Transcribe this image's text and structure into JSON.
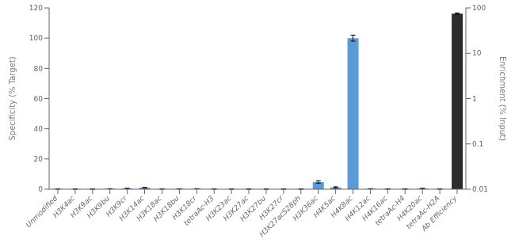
{
  "chart_data": {
    "type": "bar",
    "categories": [
      "Unmodified",
      "H3K4ac",
      "H3K9ac",
      "H3K9bu",
      "H3K9cr",
      "H3K14ac",
      "H3K18ac",
      "H3K18bu",
      "H3K18cr",
      "tetraAc-H3",
      "H3K23ac",
      "H3K27ac",
      "H3K27bu",
      "H3K27cr",
      "H3K27acS28ph",
      "H3K36ac",
      "H4K5ac",
      "H4K8ac",
      "H4K12ac",
      "H4K16ac",
      "tetraAc-H4",
      "H4K20ac",
      "tetraAc-H2A",
      "Ab Efficiency"
    ],
    "series": [
      {
        "color": "#5b9bd5",
        "values": [
          0.15,
          0.1,
          0.1,
          0.3,
          0.5,
          1.0,
          0.15,
          0.2,
          0.3,
          0.15,
          0.1,
          0.1,
          0.1,
          0.1,
          0.1,
          4.8,
          1.2,
          100.0,
          0.3,
          0.15,
          0.15,
          0.5,
          0.15,
          null
        ],
        "errors": [
          0.02,
          0.01,
          0.01,
          0.04,
          0.06,
          0.12,
          0.02,
          0.02,
          0.04,
          0.02,
          0.01,
          0.01,
          0.01,
          0.01,
          0.01,
          0.8,
          0.4,
          2.0,
          0.04,
          0.02,
          0.02,
          0.06,
          0.02,
          null
        ]
      },
      {
        "color": "#2d2d2d",
        "axis": "y2",
        "values": [
          null,
          null,
          null,
          null,
          null,
          null,
          null,
          null,
          null,
          null,
          null,
          null,
          null,
          null,
          null,
          null,
          null,
          null,
          null,
          null,
          null,
          null,
          null,
          75.0
        ],
        "errors": [
          null,
          null,
          null,
          null,
          null,
          null,
          null,
          null,
          null,
          null,
          null,
          null,
          null,
          null,
          null,
          null,
          null,
          null,
          null,
          null,
          null,
          null,
          null,
          2.5
        ]
      }
    ],
    "ylabel": "Specificity (% Target)",
    "y2label": "Enrichment (% Input)",
    "ylim": [
      0,
      120
    ],
    "yticks": [
      0,
      20,
      40,
      60,
      80,
      100,
      120
    ],
    "y2lim": [
      0.01,
      100
    ],
    "y2ticks": [
      0.01,
      0.1,
      1,
      10,
      100
    ],
    "log": "y2",
    "grid": false
  }
}
